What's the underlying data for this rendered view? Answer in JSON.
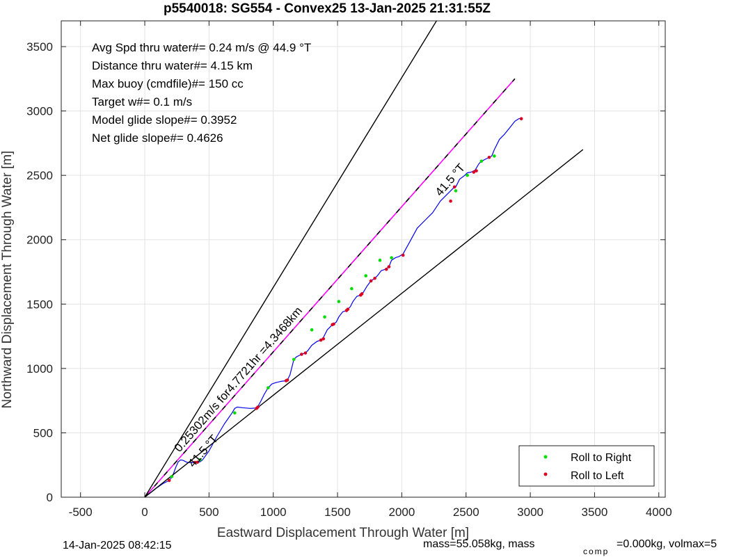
{
  "chart_data": {
    "type": "line",
    "title": "p5540018: SG554 - Convex25 13-Jan-2025 21:31:55Z",
    "xlabel": "Eastward Displacement Through Water [m]",
    "ylabel": "Northward Displacement Through Water [m]",
    "xlim": [
      -650,
      4050
    ],
    "ylim": [
      0,
      3700
    ],
    "xticks": [
      -500,
      0,
      500,
      1000,
      1500,
      2000,
      2500,
      3000,
      3500,
      4000
    ],
    "yticks": [
      0,
      500,
      1000,
      1500,
      2000,
      2500,
      3000,
      3500
    ],
    "grid": true,
    "legend_position": "bottom-right",
    "colors": {
      "track": "#0000ee",
      "course_line": "#ff00ff",
      "bound_lines": "#000000",
      "roll_right": "#00dd00",
      "roll_left": "#dd0022"
    },
    "info_lines": [
      "Avg Spd thru water#=  0.24 m/s @  44.9       °T",
      "Distance thru water#=  4.15 km",
      "Max buoy (cmdfile)#= 150 cc",
      "Target w#= 0.1 m/s",
      "Model glide slope#= 0.3952",
      "Net glide slope#= 0.4626"
    ],
    "annotations": {
      "course_label": "0.25302m/s for4.7721hr =4.3468km",
      "heading_label_upper": "41.5 °T",
      "heading_label_lower": "41.5 °T"
    },
    "series": [
      {
        "kind": "track",
        "x": [
          0,
          40,
          90,
          140,
          190,
          215,
          240,
          260,
          280,
          300,
          330,
          360,
          390,
          410,
          430,
          450,
          500,
          560,
          620,
          680,
          700,
          720,
          760,
          820,
          860,
          880,
          900,
          930,
          960,
          990,
          1020,
          1060,
          1100,
          1110,
          1130,
          1160,
          1180,
          1220,
          1250,
          1270,
          1300,
          1340,
          1370,
          1390,
          1420,
          1460,
          1490,
          1510,
          1540,
          1570,
          1600,
          1620,
          1650,
          1680,
          1700,
          1730,
          1760,
          1790,
          1810,
          1840,
          1870,
          1900,
          1920,
          1950,
          1980,
          2010,
          2060,
          2120,
          2180,
          2240,
          2300,
          2350,
          2380,
          2400,
          2420,
          2450,
          2490,
          2510,
          2540,
          2570,
          2600,
          2620,
          2660,
          2700,
          2720,
          2760,
          2800,
          2840,
          2880,
          2910,
          2940
        ],
        "y": [
          0,
          30,
          70,
          105,
          130,
          160,
          230,
          275,
          290,
          285,
          270,
          268,
          270,
          272,
          275,
          290,
          360,
          470,
          570,
          655,
          690,
          700,
          695,
          690,
          692,
          705,
          740,
          800,
          850,
          880,
          890,
          900,
          905,
          910,
          950,
          1070,
          1090,
          1110,
          1120,
          1140,
          1180,
          1210,
          1220,
          1240,
          1300,
          1340,
          1360,
          1400,
          1440,
          1450,
          1480,
          1520,
          1560,
          1570,
          1590,
          1640,
          1680,
          1700,
          1720,
          1760,
          1770,
          1790,
          1840,
          1860,
          1870,
          1890,
          1980,
          2090,
          2150,
          2210,
          2300,
          2350,
          2380,
          2400,
          2410,
          2470,
          2500,
          2520,
          2525,
          2540,
          2590,
          2610,
          2630,
          2650,
          2700,
          2780,
          2820,
          2870,
          2920,
          2940,
          2945
        ]
      },
      {
        "kind": "course_line",
        "x": [
          0,
          2880
        ],
        "y": [
          0,
          3250
        ]
      },
      {
        "kind": "bound_upper",
        "x": [
          0,
          2270
        ],
        "y": [
          0,
          3700
        ]
      },
      {
        "kind": "bound_lower",
        "x": [
          0,
          3410
        ],
        "y": [
          0,
          2700
        ]
      },
      {
        "name": "Roll to Right",
        "kind": "points",
        "x": [
          210,
          430,
          700,
          960,
          1160,
          1300,
          1400,
          1510,
          1610,
          1720,
          1830,
          1920,
          2420,
          2510,
          2620,
          2720
        ],
        "y": [
          160,
          290,
          655,
          850,
          1070,
          1300,
          1400,
          1520,
          1620,
          1720,
          1840,
          1860,
          2380,
          2500,
          2610,
          2650
        ]
      },
      {
        "name": "Roll to Left",
        "kind": "points",
        "x": [
          190,
          390,
          410,
          870,
          880,
          1100,
          1110,
          1220,
          1250,
          1370,
          1390,
          1460,
          1470,
          1570,
          1580,
          1680,
          1690,
          1760,
          1790,
          1880,
          1900,
          2010,
          2380,
          2410,
          2560,
          2580,
          2680,
          2930
        ],
        "y": [
          130,
          270,
          272,
          690,
          700,
          905,
          910,
          1110,
          1120,
          1220,
          1230,
          1340,
          1345,
          1450,
          1460,
          1570,
          1580,
          1680,
          1700,
          1770,
          1790,
          1880,
          2300,
          2410,
          2525,
          2535,
          2640,
          2940
        ]
      }
    ]
  },
  "footer": {
    "left_timestamp": "14-Jan-2025 08:42:15",
    "right_text_prefix": "mass=55.058kg, mass",
    "right_text_sub": "comp",
    "right_text_suffix": "=0.000kg, volmax=5"
  }
}
